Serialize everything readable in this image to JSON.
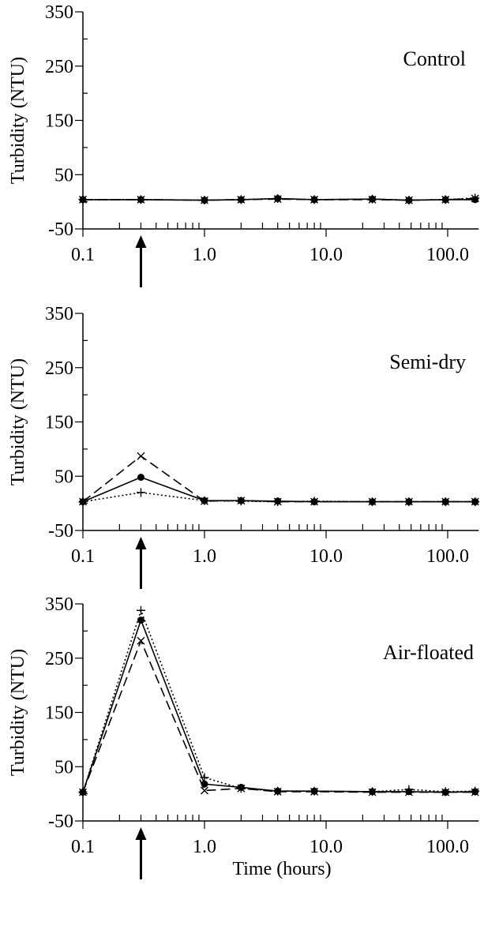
{
  "chart_data": [
    {
      "type": "line",
      "title": "Control",
      "ylabel": "Turbidity (NTU)",
      "xlabel": "",
      "x_scale": "log",
      "xlim": [
        0.1,
        180
      ],
      "ylim": [
        -50,
        350
      ],
      "y_ticks": [
        "350",
        "250",
        "150",
        "50",
        "-50"
      ],
      "x_ticks": [
        "0.1",
        "1.0",
        "10.0",
        "100.0"
      ],
      "marker_arrow_x": 0.3,
      "x": [
        0.1,
        0.3,
        1,
        2,
        4,
        8,
        24,
        48,
        96,
        168
      ],
      "series": [
        {
          "marker": "dot",
          "line": "solid",
          "values": [
            4,
            4,
            3,
            4,
            6,
            4,
            5,
            3,
            4,
            4
          ]
        },
        {
          "marker": "cross",
          "line": "dashed",
          "values": [
            4,
            4,
            3,
            4,
            5,
            4,
            4,
            3,
            4,
            6
          ]
        },
        {
          "marker": "plus",
          "line": "dotted",
          "values": [
            4,
            4,
            3,
            4,
            6,
            4,
            5,
            3,
            4,
            7
          ]
        }
      ]
    },
    {
      "type": "line",
      "title": "Semi-dry",
      "ylabel": "Turbidity (NTU)",
      "xlabel": "",
      "x_scale": "log",
      "xlim": [
        0.1,
        180
      ],
      "ylim": [
        -50,
        350
      ],
      "y_ticks": [
        "350",
        "250",
        "150",
        "50",
        "-50"
      ],
      "x_ticks": [
        "0.1",
        "1.0",
        "10.0",
        "100.0"
      ],
      "marker_arrow_x": 0.3,
      "x": [
        0.1,
        0.3,
        1,
        2,
        4,
        8,
        24,
        48,
        96,
        168
      ],
      "series": [
        {
          "marker": "dot",
          "line": "solid",
          "values": [
            3,
            48,
            5,
            5,
            4,
            3,
            3,
            3,
            3,
            3
          ]
        },
        {
          "marker": "cross",
          "line": "dashed",
          "values": [
            3,
            87,
            4,
            5,
            3,
            3,
            3,
            3,
            3,
            3
          ]
        },
        {
          "marker": "plus",
          "line": "dotted",
          "values": [
            3,
            20,
            5,
            4,
            3,
            4,
            3,
            3,
            3,
            3
          ]
        }
      ]
    },
    {
      "type": "line",
      "title": "Air-floated",
      "ylabel": "Turbidity (NTU)",
      "xlabel": "Time (hours)",
      "x_scale": "log",
      "xlim": [
        0.1,
        180
      ],
      "ylim": [
        -50,
        350
      ],
      "y_ticks": [
        "350",
        "250",
        "150",
        "50",
        "-50"
      ],
      "x_ticks": [
        "0.1",
        "1.0",
        "10.0",
        "100.0"
      ],
      "marker_arrow_x": 0.3,
      "x": [
        0.1,
        0.3,
        1,
        2,
        4,
        8,
        24,
        48,
        96,
        168
      ],
      "series": [
        {
          "marker": "dot",
          "line": "solid",
          "values": [
            3,
            320,
            18,
            12,
            5,
            5,
            4,
            4,
            3,
            4
          ]
        },
        {
          "marker": "cross",
          "line": "dashed",
          "values": [
            3,
            282,
            6,
            10,
            4,
            4,
            3,
            3,
            3,
            3
          ]
        },
        {
          "marker": "plus",
          "line": "dotted",
          "values": [
            3,
            338,
            30,
            10,
            5,
            5,
            4,
            8,
            4,
            5
          ]
        }
      ]
    }
  ]
}
